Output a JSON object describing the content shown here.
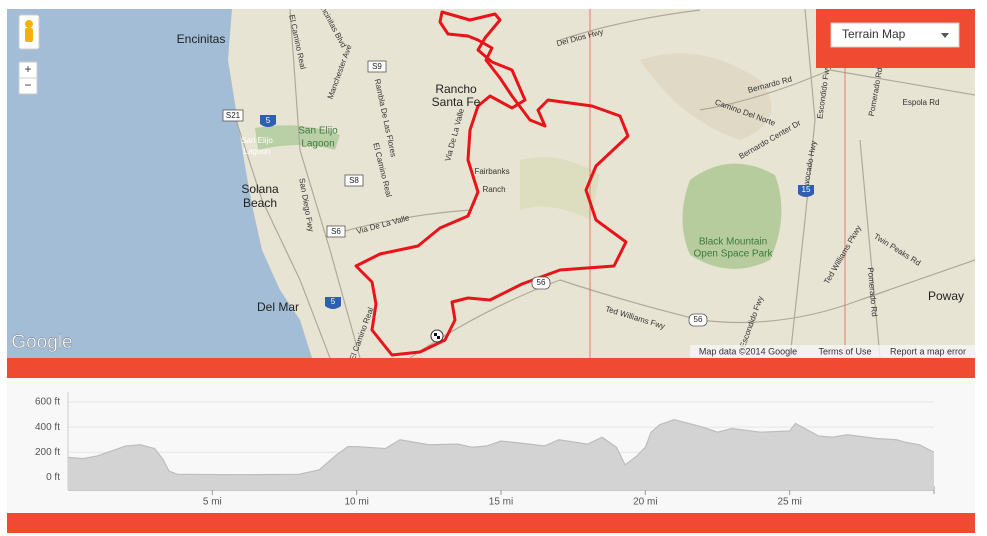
{
  "map": {
    "labels": [
      "Encinitas",
      "Encinitas Blvd",
      "Manchester Ave",
      "El Camino Real",
      "S9",
      "Rancho",
      "Santa Fe",
      "Del Dios Hwy",
      "S21",
      "5",
      "San Elijo",
      "Lagoon",
      "San Elijo",
      "Lagoon",
      "Rambla De Las Flores",
      "El Camino Real",
      "Via De La Valle",
      "Fairbanks",
      "Ranch",
      "Solana",
      "Beach",
      "San Diego Fwy",
      "S8",
      "S6",
      "Via De La Valle",
      "Del Mar",
      "5",
      "El Camino Real",
      "56",
      "Ted Williams Fwy",
      "56",
      "Escondido Fwy",
      "Bernardo Rd",
      "Camino Del Norte",
      "Bernardo Center Dr",
      "Avocado Hwy",
      "Escondido Fwy",
      "15",
      "Black Mountain",
      "Open Space Park",
      "Twin Peaks Rd",
      "Ted Williams Pkwy",
      "Pomerado Rd",
      "Pomerado Rd",
      "Espola Rd",
      "Poway"
    ],
    "map_type": "Terrain Map",
    "logo": "Google",
    "zoom_in": "+",
    "zoom_out": "−",
    "attribution": "Map data ©2014 Google",
    "terms": "Terms of Use",
    "report": "Report a map error"
  },
  "chart_data": {
    "type": "area",
    "x": [
      0,
      0.5,
      1,
      1.5,
      2,
      2.5,
      3,
      3.3,
      3.5,
      3.8,
      4,
      6,
      8,
      8.7,
      9.3,
      9.7,
      10,
      11,
      11.5,
      12.5,
      13.5,
      14,
      14.5,
      15,
      16,
      16.5,
      17,
      18,
      18.5,
      19,
      19.3,
      19.7,
      20,
      20.2,
      20.5,
      21,
      22,
      22.5,
      23,
      24,
      25,
      25.2,
      26,
      26.5,
      27,
      28,
      28.7,
      29,
      29.5,
      30
    ],
    "values": [
      160,
      150,
      170,
      210,
      250,
      260,
      230,
      140,
      50,
      25,
      25,
      22,
      25,
      60,
      180,
      245,
      245,
      230,
      300,
      260,
      265,
      240,
      250,
      290,
      265,
      250,
      300,
      265,
      320,
      240,
      100,
      170,
      240,
      360,
      420,
      460,
      400,
      360,
      390,
      360,
      370,
      430,
      330,
      320,
      340,
      310,
      300,
      280,
      260,
      200
    ],
    "color": "#d3d3d3",
    "xlim": [
      0,
      30
    ],
    "ylim": [
      -100,
      680
    ],
    "xticks": [
      {
        "value": 5,
        "label": "5 mi"
      },
      {
        "value": 10,
        "label": "10 mi"
      },
      {
        "value": 15,
        "label": "15 mi"
      },
      {
        "value": 20,
        "label": "20 mi"
      },
      {
        "value": 25,
        "label": "25 mi"
      }
    ],
    "yticks": [
      {
        "value": 0,
        "label": "0 ft"
      },
      {
        "value": 200,
        "label": "200 ft"
      },
      {
        "value": 400,
        "label": "400 ft"
      },
      {
        "value": 600,
        "label": "600 ft"
      }
    ],
    "grid": true
  }
}
